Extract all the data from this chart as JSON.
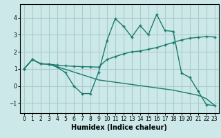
{
  "xlabel": "Humidex (Indice chaleur)",
  "bg_color": "#cce8e8",
  "grid_color": "#aacccc",
  "line_color": "#1a7a6e",
  "xlim": [
    -0.5,
    23.5
  ],
  "ylim": [
    -1.6,
    4.8
  ],
  "yticks": [
    -1,
    0,
    1,
    2,
    3,
    4
  ],
  "xticks": [
    0,
    1,
    2,
    3,
    4,
    5,
    6,
    7,
    8,
    9,
    10,
    11,
    12,
    13,
    14,
    15,
    16,
    17,
    18,
    19,
    20,
    21,
    22,
    23
  ],
  "line1_x": [
    0,
    1,
    2,
    3,
    4,
    5,
    6,
    7,
    8,
    9,
    10,
    11,
    12,
    13,
    14,
    15,
    16,
    17,
    18,
    19,
    20,
    21,
    22,
    23
  ],
  "line1_y": [
    1.0,
    1.55,
    1.3,
    1.28,
    1.22,
    1.18,
    1.15,
    1.13,
    1.12,
    1.1,
    1.55,
    1.72,
    1.88,
    2.0,
    2.05,
    2.15,
    2.25,
    2.4,
    2.55,
    2.7,
    2.8,
    2.85,
    2.9,
    2.87
  ],
  "line2_x": [
    0,
    1,
    2,
    3,
    4,
    5,
    6,
    7,
    8,
    9,
    10,
    11,
    12,
    13,
    14,
    15,
    16,
    17,
    18,
    19,
    20,
    21,
    22,
    23
  ],
  "line2_y": [
    1.0,
    1.55,
    1.3,
    1.28,
    1.1,
    0.78,
    0.0,
    -0.45,
    -0.45,
    0.8,
    2.65,
    3.95,
    3.5,
    2.87,
    3.55,
    3.0,
    4.2,
    3.25,
    3.2,
    0.75,
    0.5,
    -0.3,
    -1.1,
    -1.15
  ],
  "line3_x": [
    0,
    1,
    2,
    3,
    9,
    18,
    19,
    20,
    21,
    22,
    23
  ],
  "line3_y": [
    1.0,
    1.55,
    1.3,
    1.28,
    0.35,
    -0.25,
    -0.35,
    -0.45,
    -0.55,
    -0.75,
    -1.15
  ],
  "marker_size": 3.0
}
